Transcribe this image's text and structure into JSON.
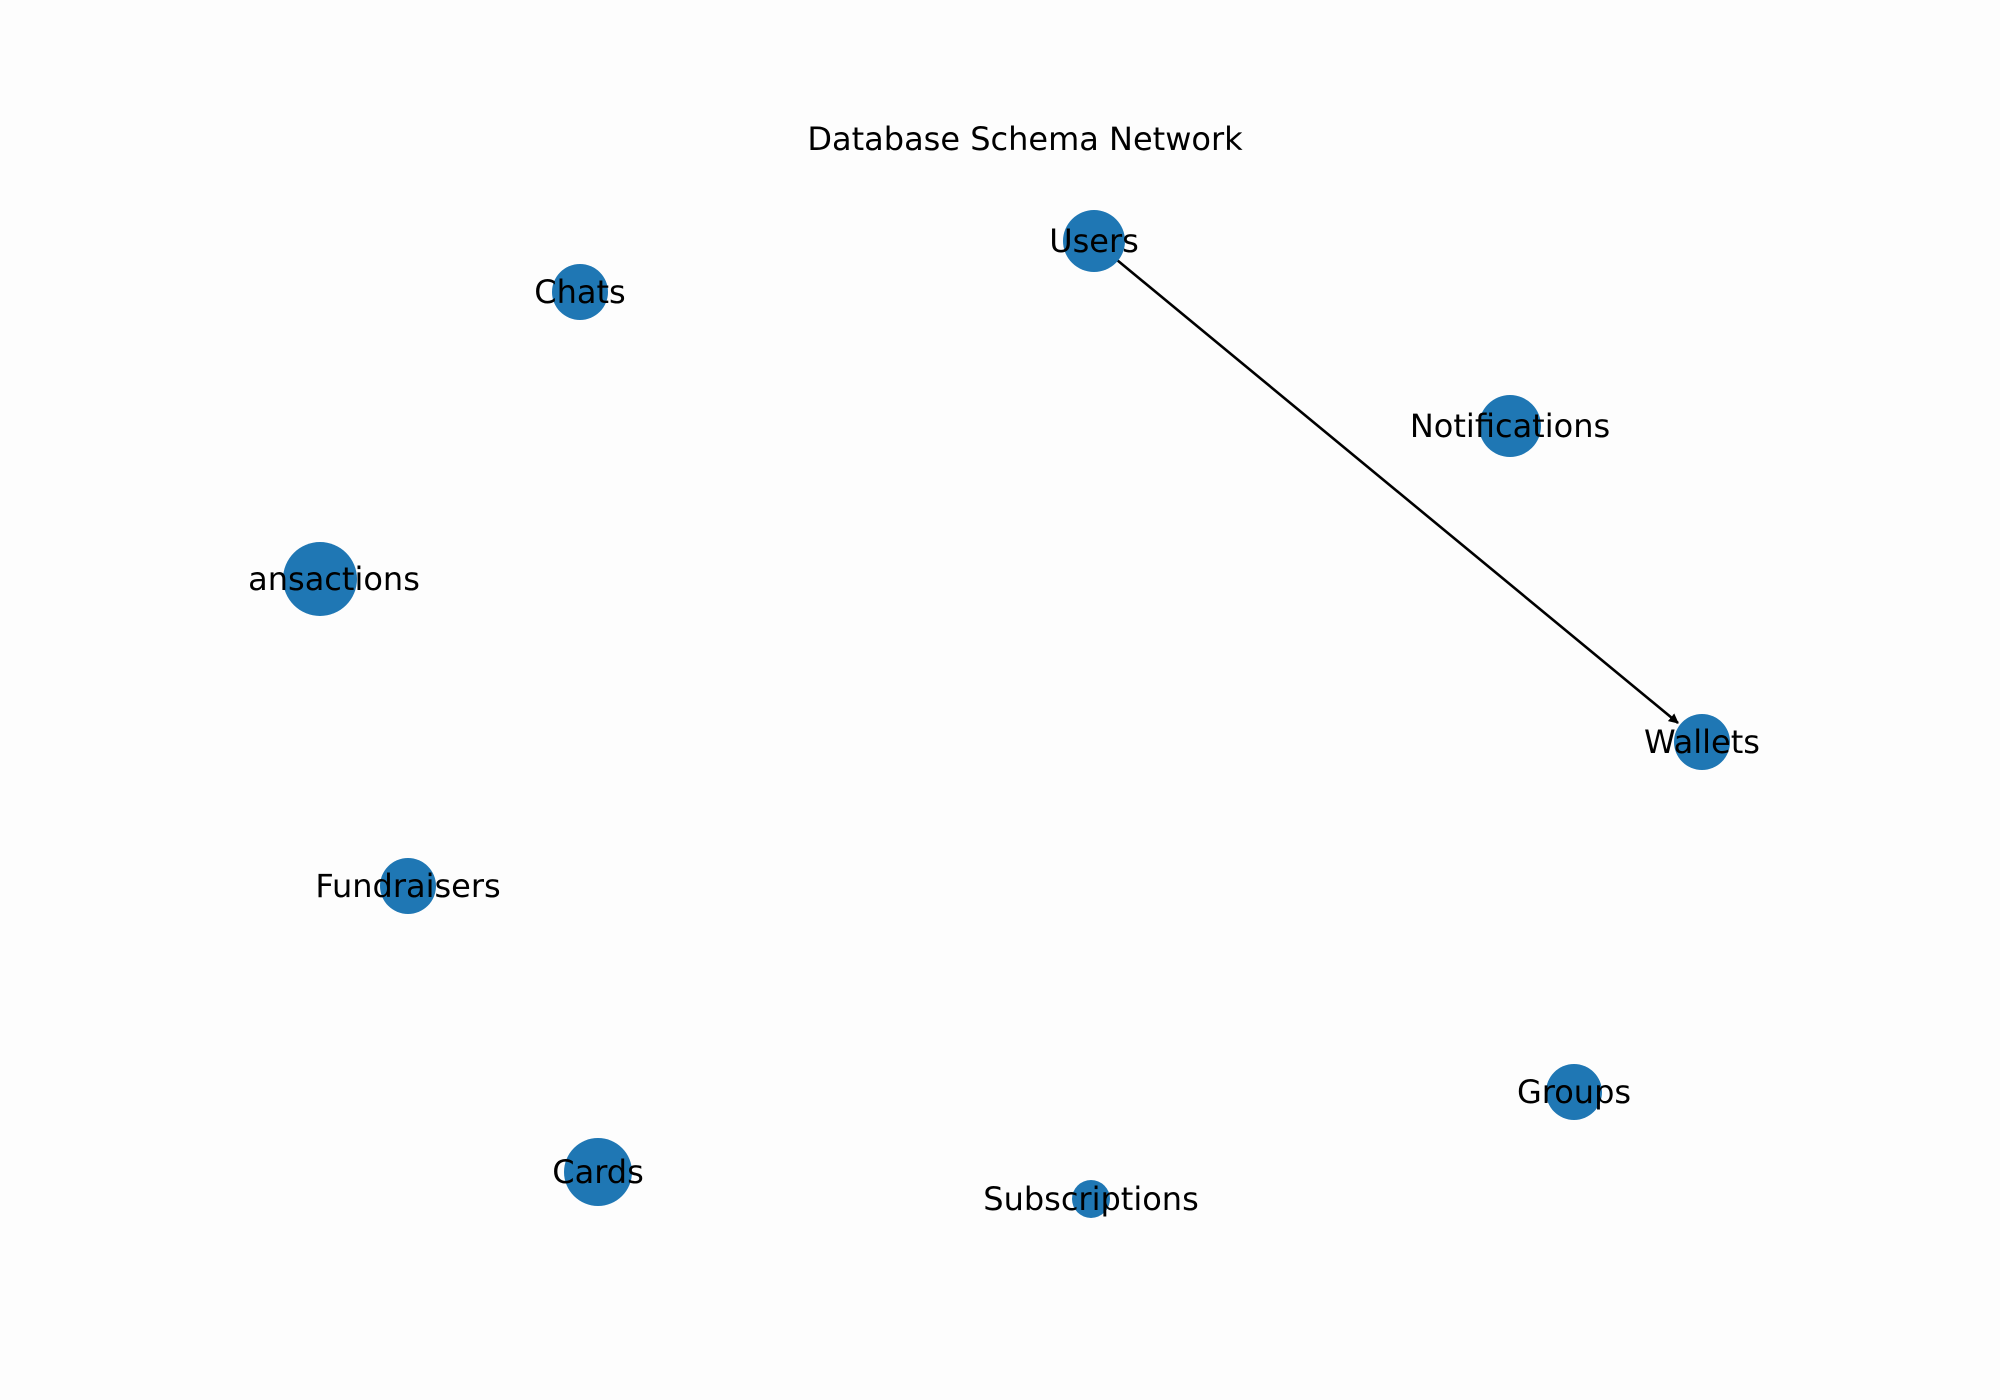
{
  "diagram": {
    "title": "Database Schema Network",
    "node_color": "#1f77b4",
    "edge_color": "#000000",
    "nodes": [
      {
        "id": "Users",
        "label": "Users"
      },
      {
        "id": "Chats",
        "label": "Chats"
      },
      {
        "id": "Notifications",
        "label": "Notifications"
      },
      {
        "id": "Transactions",
        "label": "Transactions"
      },
      {
        "id": "Wallets",
        "label": "Wallets"
      },
      {
        "id": "Fundraisers",
        "label": "Fundraisers"
      },
      {
        "id": "Groups",
        "label": "Groups"
      },
      {
        "id": "Cards",
        "label": "Cards"
      },
      {
        "id": "Subscriptions",
        "label": "Subscriptions"
      }
    ],
    "edges": [
      {
        "from": "Users",
        "to": "Wallets",
        "directed": true
      }
    ]
  }
}
